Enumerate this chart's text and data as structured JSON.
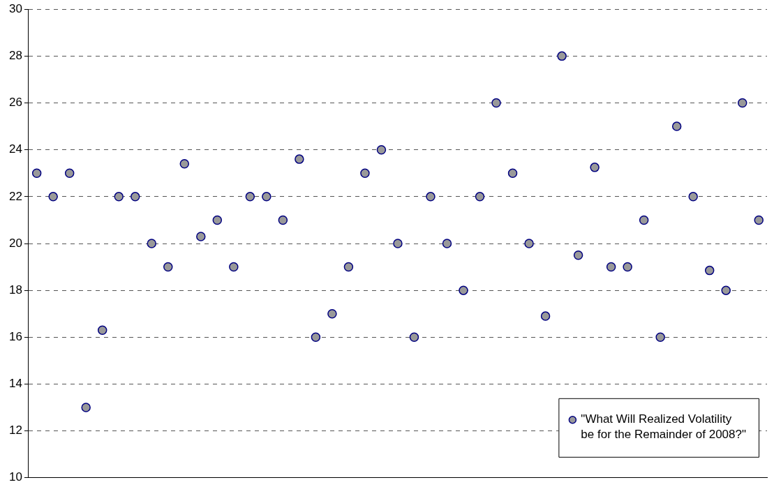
{
  "chart_data": {
    "type": "scatter",
    "categories": [
      null,
      null,
      null,
      null,
      null,
      null,
      null,
      null,
      null,
      null,
      null,
      null,
      null,
      null,
      null,
      null,
      null,
      null,
      null,
      null,
      null,
      null,
      null,
      null,
      null,
      null,
      null,
      null,
      null,
      null,
      null,
      null,
      null,
      null,
      null,
      null,
      null,
      null,
      null,
      null,
      null,
      null,
      null,
      null,
      null
    ],
    "series": [
      {
        "name": "\"What Will Realized Volatility be for the Remainder of 2008?\"",
        "color": "#999999",
        "values": [
          23,
          22,
          23,
          13,
          16.3,
          22,
          22,
          20,
          19,
          23.4,
          20.3,
          21,
          19,
          22,
          22,
          21,
          23.6,
          16,
          17,
          19,
          23,
          24,
          20,
          16,
          22,
          20,
          18,
          22,
          26,
          23,
          20,
          16.9,
          28,
          19.5,
          23.25,
          19,
          19,
          21,
          16,
          25,
          22,
          18.85,
          18,
          26,
          21
        ]
      }
    ],
    "ylim": [
      10,
      30
    ],
    "yticks": [
      10,
      12,
      14,
      16,
      18,
      20,
      22,
      24,
      26,
      28,
      30
    ],
    "grid": "y",
    "legend": "bottom right",
    "marker": "circle"
  }
}
